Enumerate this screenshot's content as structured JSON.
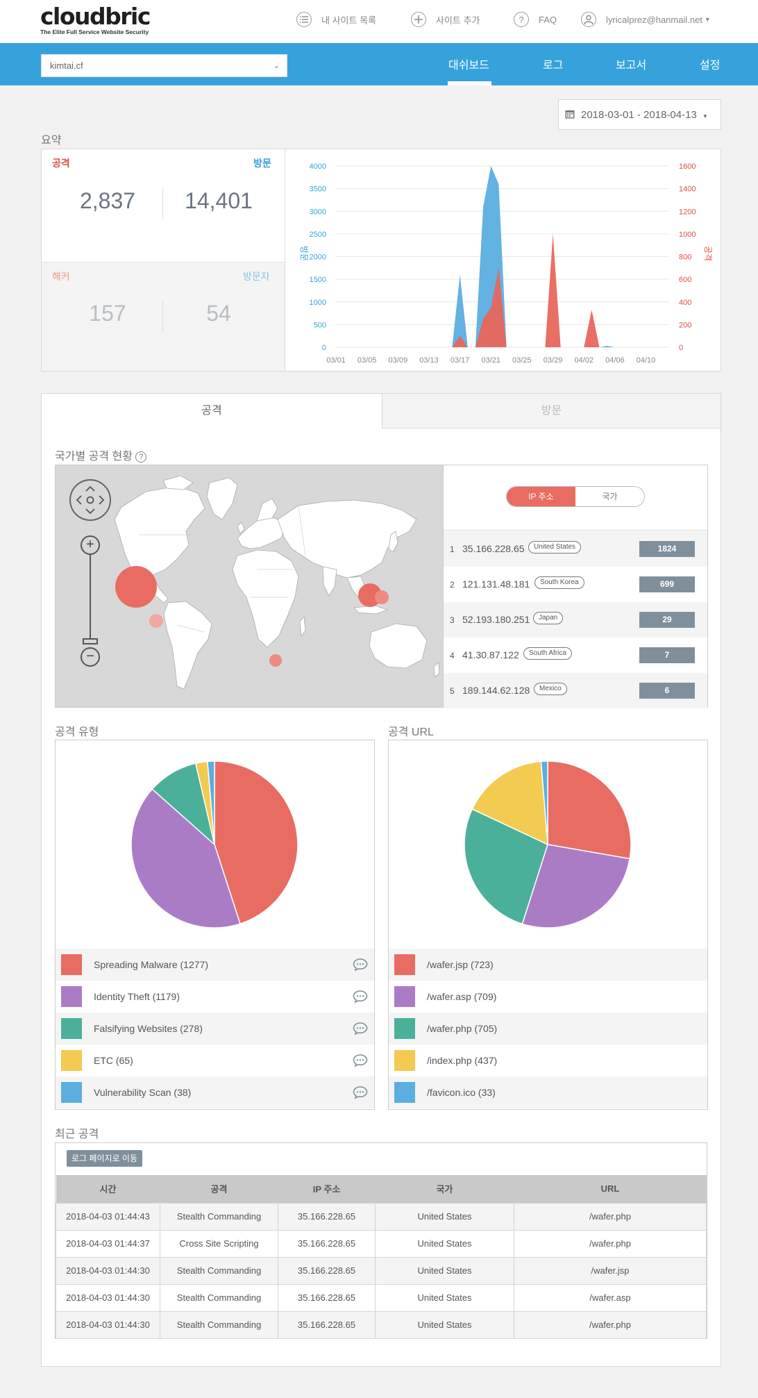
{
  "header": {
    "logo": "cloudbric",
    "tagline": "The Elite Full Service Website Security",
    "nav": [
      {
        "label": "내 사이트 목록",
        "icon": "list-icon"
      },
      {
        "label": "사이트 추가",
        "icon": "plus-circle-icon"
      },
      {
        "label": "FAQ",
        "icon": "question-icon"
      },
      {
        "label": "lyricalprez@hanmail.net",
        "icon": "user-icon"
      }
    ]
  },
  "site_selector": {
    "value": "kimtai.cf"
  },
  "main_tabs": [
    "대쉬보드",
    "로그",
    "보고서",
    "설정"
  ],
  "date_range": "2018-03-01 - 2018-04-13",
  "summary": {
    "title": "요약",
    "attack_label": "공격",
    "visit_label": "방문",
    "attack_count": "2,837",
    "visit_count": "14,401",
    "hacker_label": "해커",
    "visitor_label": "방문자",
    "hacker_count": "157",
    "visitor_count": "54"
  },
  "chart_data": {
    "type": "area",
    "x_tick_labels": [
      "03/01",
      "03/05",
      "03/09",
      "03/13",
      "03/17",
      "03/21",
      "03/25",
      "03/29",
      "04/02",
      "04/06",
      "04/10"
    ],
    "y_left_label": "방문",
    "y_right_label": "공격",
    "y_left_ticks": [
      0,
      500,
      1000,
      1500,
      2000,
      2500,
      3000,
      3500,
      4000
    ],
    "y_right_ticks": [
      0,
      200,
      400,
      600,
      800,
      1000,
      1200,
      1400,
      1600
    ],
    "ylim_left": [
      0,
      4000
    ],
    "ylim_right": [
      0,
      1600
    ],
    "days": [
      "03/01",
      "03/02",
      "03/03",
      "03/04",
      "03/05",
      "03/06",
      "03/07",
      "03/08",
      "03/09",
      "03/10",
      "03/11",
      "03/12",
      "03/13",
      "03/14",
      "03/15",
      "03/16",
      "03/17",
      "03/18",
      "03/19",
      "03/20",
      "03/21",
      "03/22",
      "03/23",
      "03/24",
      "03/25",
      "03/26",
      "03/27",
      "03/28",
      "03/29",
      "03/30",
      "03/31",
      "04/01",
      "04/02",
      "04/03",
      "04/04",
      "04/05",
      "04/06",
      "04/07",
      "04/08",
      "04/09",
      "04/10",
      "04/11",
      "04/12",
      "04/13"
    ],
    "series": [
      {
        "name": "방문",
        "axis": "left",
        "color": "#5aaee0",
        "values": [
          0,
          0,
          0,
          0,
          0,
          0,
          0,
          0,
          0,
          0,
          0,
          0,
          0,
          0,
          0,
          0,
          1600,
          0,
          0,
          3100,
          4000,
          3600,
          0,
          0,
          0,
          0,
          0,
          0,
          0,
          0,
          0,
          0,
          0,
          0,
          0,
          30,
          0,
          0,
          0,
          0,
          0,
          0,
          0,
          0
        ]
      },
      {
        "name": "공격",
        "axis": "right",
        "color": "#e8665c",
        "values": [
          0,
          0,
          0,
          0,
          0,
          0,
          0,
          0,
          0,
          0,
          0,
          0,
          0,
          0,
          0,
          0,
          100,
          0,
          0,
          250,
          350,
          700,
          0,
          0,
          0,
          0,
          0,
          0,
          1000,
          0,
          0,
          0,
          0,
          330,
          0,
          0,
          0,
          0,
          0,
          0,
          0,
          0,
          0,
          0
        ]
      }
    ]
  },
  "content_tabs": [
    "공격",
    "방문"
  ],
  "geo": {
    "title": "국가별 공격 현황",
    "toggle": [
      "IP 주소",
      "국가"
    ],
    "rows": [
      {
        "rank": "1",
        "ip": "35.166.228.65",
        "country": "United States",
        "count": "1824"
      },
      {
        "rank": "2",
        "ip": "121.131.48.181",
        "country": "South Korea",
        "count": "699"
      },
      {
        "rank": "3",
        "ip": "52.193.180.251",
        "country": "Japan",
        "count": "29"
      },
      {
        "rank": "4",
        "ip": "41.30.87.122",
        "country": "South Africa",
        "count": "7"
      },
      {
        "rank": "5",
        "ip": "189.144.62.128",
        "country": "Mexico",
        "count": "6"
      }
    ]
  },
  "attack_types": {
    "title": "공격 유형",
    "items": [
      {
        "label": "Spreading Malware (1277)",
        "value": 1277,
        "color": "#e96c62"
      },
      {
        "label": "Identity Theft (1179)",
        "value": 1179,
        "color": "#ab7cc6"
      },
      {
        "label": "Falsifying Websites (278)",
        "value": 278,
        "color": "#4bb09a"
      },
      {
        "label": "ETC (65)",
        "value": 65,
        "color": "#f3cb51"
      },
      {
        "label": "Vulnerability Scan (38)",
        "value": 38,
        "color": "#5aaee0"
      }
    ]
  },
  "attack_urls": {
    "title": "공격 URL",
    "items": [
      {
        "label": "/wafer.jsp (723)",
        "value": 723,
        "color": "#e96c62"
      },
      {
        "label": "/wafer.asp (709)",
        "value": 709,
        "color": "#ab7cc6"
      },
      {
        "label": "/wafer.php (705)",
        "value": 705,
        "color": "#4bb09a"
      },
      {
        "label": "/index.php (437)",
        "value": 437,
        "color": "#f3cb51"
      },
      {
        "label": "/favicon.ico (33)",
        "value": 33,
        "color": "#5aaee0"
      }
    ]
  },
  "recent": {
    "title": "최근 공격",
    "button": "로그 페이지로 이동",
    "columns": [
      "시간",
      "공격",
      "IP 주소",
      "국가",
      "URL"
    ],
    "rows": [
      [
        "2018-04-03 01:44:43",
        "Stealth Commanding",
        "35.166.228.65",
        "United States",
        "/wafer.php"
      ],
      [
        "2018-04-03 01:44:37",
        "Cross Site Scripting",
        "35.166.228.65",
        "United States",
        "/wafer.php"
      ],
      [
        "2018-04-03 01:44:30",
        "Stealth Commanding",
        "35.166.228.65",
        "United States",
        "/wafer.jsp"
      ],
      [
        "2018-04-03 01:44:30",
        "Stealth Commanding",
        "35.166.228.65",
        "United States",
        "/wafer.asp"
      ],
      [
        "2018-04-03 01:44:30",
        "Stealth Commanding",
        "35.166.228.65",
        "United States",
        "/wafer.php"
      ]
    ]
  }
}
